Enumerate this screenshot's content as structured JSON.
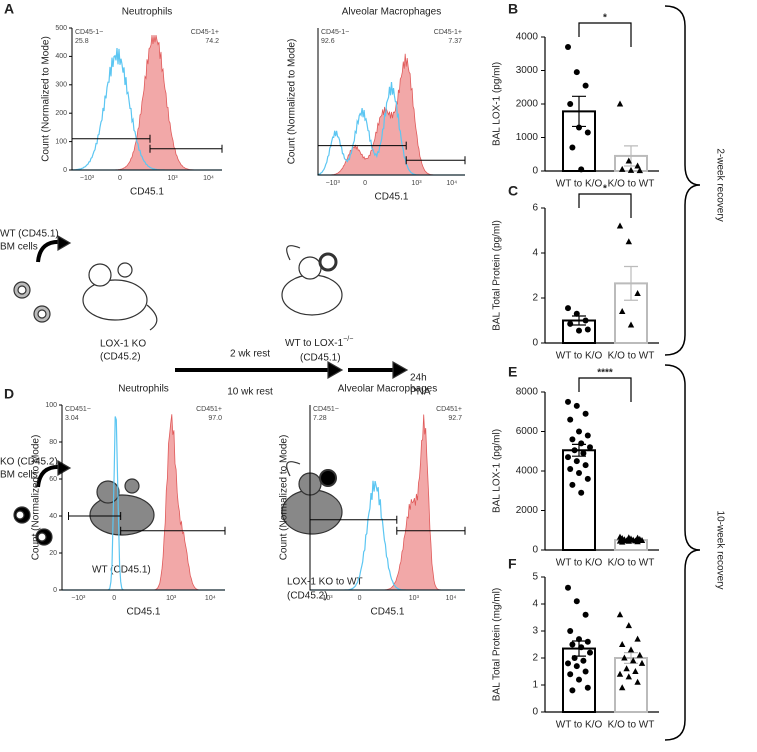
{
  "figure": {
    "panel_labels": [
      "A",
      "B",
      "C",
      "D",
      "E",
      "F"
    ],
    "recovery": [
      "2-week recovery",
      "10-week recovery"
    ]
  },
  "flow_panels": [
    {
      "title": "Neutrophils",
      "ylabel": "Count (Normalized to Mode)",
      "xlabel": "CD45.1",
      "xticks": [
        "−10³",
        "0",
        "10³",
        "10⁴"
      ],
      "yticks": [
        0,
        100,
        200,
        300,
        400,
        500
      ],
      "gates": [
        {
          "label": "CD45-1−",
          "value": "25.8"
        },
        {
          "label": "CD45-1+",
          "value": "74.2"
        }
      ]
    },
    {
      "title": "Alveolar Macrophages",
      "ylabel": "Count (Normalized to Mode)",
      "xlabel": "CD45.1",
      "xticks": [
        "−10³",
        "0",
        "10³",
        "10⁴"
      ],
      "gates": [
        {
          "label": "CD45-1−",
          "value": "92.6"
        },
        {
          "label": "CD45-1+",
          "value": "7.37"
        }
      ]
    },
    {
      "title": "Neutrophils",
      "ylabel": "Count (Normalized to Mode)",
      "xlabel": "CD45.1",
      "xticks": [
        "−10³",
        "0",
        "10³",
        "10⁴"
      ],
      "yticks": [
        0,
        20,
        40,
        60,
        80,
        100
      ],
      "gates": [
        {
          "label": "CD451−",
          "value": "3.04"
        },
        {
          "label": "CD451+",
          "value": "97.0"
        }
      ]
    },
    {
      "title": "Alveolar Macrophages",
      "ylabel": "Count (Normalized to Mode)",
      "xlabel": "CD45.1",
      "xticks": [
        "−10³",
        "0",
        "10³",
        "10⁴"
      ],
      "gates": [
        {
          "label": "CD451−",
          "value": "7.28"
        },
        {
          "label": "CD451+",
          "value": "92.7"
        }
      ]
    }
  ],
  "diagram": {
    "donor_top": [
      "WT (CD45.1)",
      "BM cells"
    ],
    "recipient_top": [
      "LOX-1 KO",
      "(CD45.2)"
    ],
    "rest": [
      "2 wk rest",
      "10 wk rest"
    ],
    "result_top": [
      "WT to LOX-1",
      "−/−",
      "(CD45.1)"
    ],
    "challenge": [
      "24h",
      "PNA"
    ],
    "donor_bottom": [
      "KO (CD45.2)",
      "BM cells"
    ],
    "recipient_bottom": [
      "WT (CD45.1)"
    ],
    "result_bottom": [
      "LOX-1 KO to WT",
      "(CD45.2)"
    ]
  },
  "chart_data": [
    {
      "type": "bar",
      "ylabel": "BAL LOX-1 (pg/ml)",
      "categories": [
        "WT to K/O",
        "K/O to WT"
      ],
      "values": [
        1780,
        450
      ],
      "errors": [
        450,
        300
      ],
      "points": [
        [
          3700,
          2950,
          2550,
          2000,
          1300,
          1150,
          700,
          50
        ],
        [
          2000,
          300,
          150,
          50,
          20,
          10
        ]
      ],
      "colors": [
        "#000000",
        "#bbbbbb"
      ],
      "markers": [
        "circle",
        "triangle"
      ],
      "ylim": [
        0,
        4000
      ],
      "yticks": [
        0,
        1000,
        2000,
        3000,
        4000
      ],
      "significance": "*"
    },
    {
      "type": "bar",
      "ylabel": "BAL Total Protein (pg/ml)",
      "categories": [
        "WT to K/O",
        "K/O to WT"
      ],
      "values": [
        1.0,
        2.65
      ],
      "errors": [
        0.2,
        0.75
      ],
      "points": [
        [
          1.55,
          1.3,
          1.0,
          0.85,
          0.55,
          0.6
        ],
        [
          5.2,
          4.5,
          2.2,
          1.4,
          0.8
        ]
      ],
      "colors": [
        "#000000",
        "#bbbbbb"
      ],
      "markers": [
        "circle",
        "triangle"
      ],
      "ylim": [
        0,
        6
      ],
      "yticks": [
        0,
        2,
        4,
        6
      ],
      "significance": "*"
    },
    {
      "type": "bar",
      "ylabel": "BAL LOX-1 (pg/ml)",
      "categories": [
        "WT to K/O",
        "K/O to WT"
      ],
      "values": [
        5050,
        500
      ],
      "errors": [
        300,
        30
      ],
      "points": [
        [
          7500,
          7300,
          6900,
          6600,
          6000,
          5800,
          5600,
          5400,
          5200,
          5050,
          4900,
          4700,
          4500,
          4300,
          4100,
          3900,
          3600,
          3300,
          2900
        ],
        [
          650,
          620,
          600,
          580,
          560,
          540,
          520,
          500,
          480,
          470,
          460,
          450,
          440,
          420,
          400
        ]
      ],
      "colors": [
        "#000000",
        "#bbbbbb"
      ],
      "markers": [
        "circle",
        "triangle"
      ],
      "ylim": [
        0,
        8000
      ],
      "yticks": [
        0,
        2000,
        4000,
        6000,
        8000
      ],
      "significance": "****"
    },
    {
      "type": "bar",
      "ylabel": "BAL Total Protein (mg/ml)",
      "categories": [
        "WT to K/O",
        "K/O to WT"
      ],
      "values": [
        2.35,
        2.0
      ],
      "errors": [
        0.28,
        0.2
      ],
      "points": [
        [
          4.6,
          4.1,
          3.6,
          3.0,
          2.7,
          2.6,
          2.5,
          2.4,
          2.2,
          2.0,
          1.9,
          1.8,
          1.7,
          1.5,
          1.4,
          1.2,
          0.9,
          0.8
        ],
        [
          3.6,
          3.2,
          2.7,
          2.5,
          2.3,
          2.1,
          2.0,
          1.9,
          1.8,
          1.6,
          1.5,
          1.4,
          1.3,
          1.1,
          0.9
        ]
      ],
      "colors": [
        "#000000",
        "#bbbbbb"
      ],
      "markers": [
        "circle",
        "triangle"
      ],
      "ylim": [
        0,
        5
      ],
      "yticks": [
        0,
        1,
        2,
        3,
        4,
        5
      ]
    }
  ]
}
